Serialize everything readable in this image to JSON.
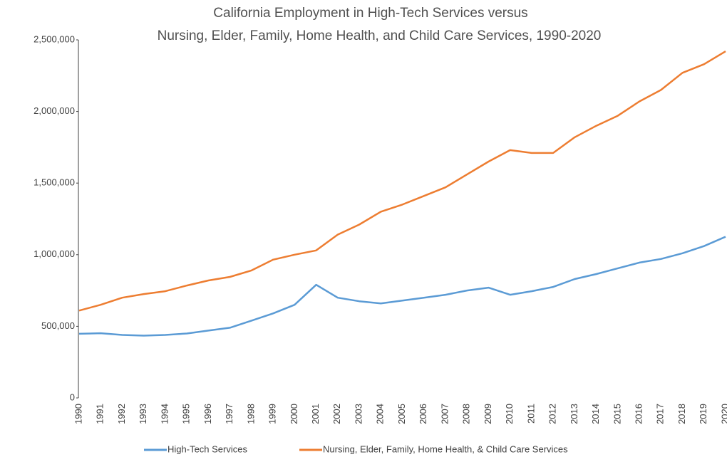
{
  "chart_data": {
    "type": "line",
    "title": [
      "California Employment in High-Tech Services versus",
      "Nursing, Elder, Family, Home Health, and Child Care Services,  1990-2020"
    ],
    "x": [
      1990,
      1991,
      1992,
      1993,
      1994,
      1995,
      1996,
      1997,
      1998,
      1999,
      2000,
      2001,
      2002,
      2003,
      2004,
      2005,
      2006,
      2007,
      2008,
      2009,
      2010,
      2011,
      2012,
      2013,
      2014,
      2015,
      2016,
      2017,
      2018,
      2019,
      2020
    ],
    "series": [
      {
        "name": "High-Tech Services",
        "color": "#5b9bd5",
        "values": [
          448000,
          452000,
          440000,
          435000,
          440000,
          450000,
          470000,
          490000,
          540000,
          590000,
          650000,
          790000,
          700000,
          675000,
          660000,
          680000,
          700000,
          720000,
          750000,
          770000,
          720000,
          745000,
          775000,
          830000,
          865000,
          905000,
          945000,
          970000,
          1010000,
          1060000,
          1125000
        ]
      },
      {
        "name": "Nursing, Elder, Family, Home Health, & Child Care Services",
        "color": "#ed7d31",
        "values": [
          610000,
          650000,
          700000,
          725000,
          745000,
          785000,
          820000,
          845000,
          890000,
          965000,
          1000000,
          1030000,
          1140000,
          1210000,
          1300000,
          1350000,
          1410000,
          1470000,
          1560000,
          1650000,
          1730000,
          1710000,
          1710000,
          1820000,
          1900000,
          1970000,
          2070000,
          2150000,
          2270000,
          2330000,
          2420000
        ]
      }
    ],
    "xlim": [
      1990,
      2020
    ],
    "xticks": [
      1990,
      1991,
      1992,
      1993,
      1994,
      1995,
      1996,
      1997,
      1998,
      1999,
      2000,
      2001,
      2002,
      2003,
      2004,
      2005,
      2006,
      2007,
      2008,
      2009,
      2010,
      2011,
      2012,
      2013,
      2014,
      2015,
      2016,
      2017,
      2018,
      2019,
      2020
    ],
    "ylim": [
      0,
      2500000
    ],
    "yticks": [
      0,
      {
        "value": 500000,
        "label": "500,000"
      },
      {
        "value": 1000000,
        "label": "1,000,000"
      },
      {
        "value": 1500000,
        "label": "1,500,000"
      },
      {
        "value": 2000000,
        "label": "2,000,000"
      },
      {
        "value": 2500000,
        "label": "2,500,000"
      }
    ],
    "grid": false,
    "legend": "bottom"
  }
}
